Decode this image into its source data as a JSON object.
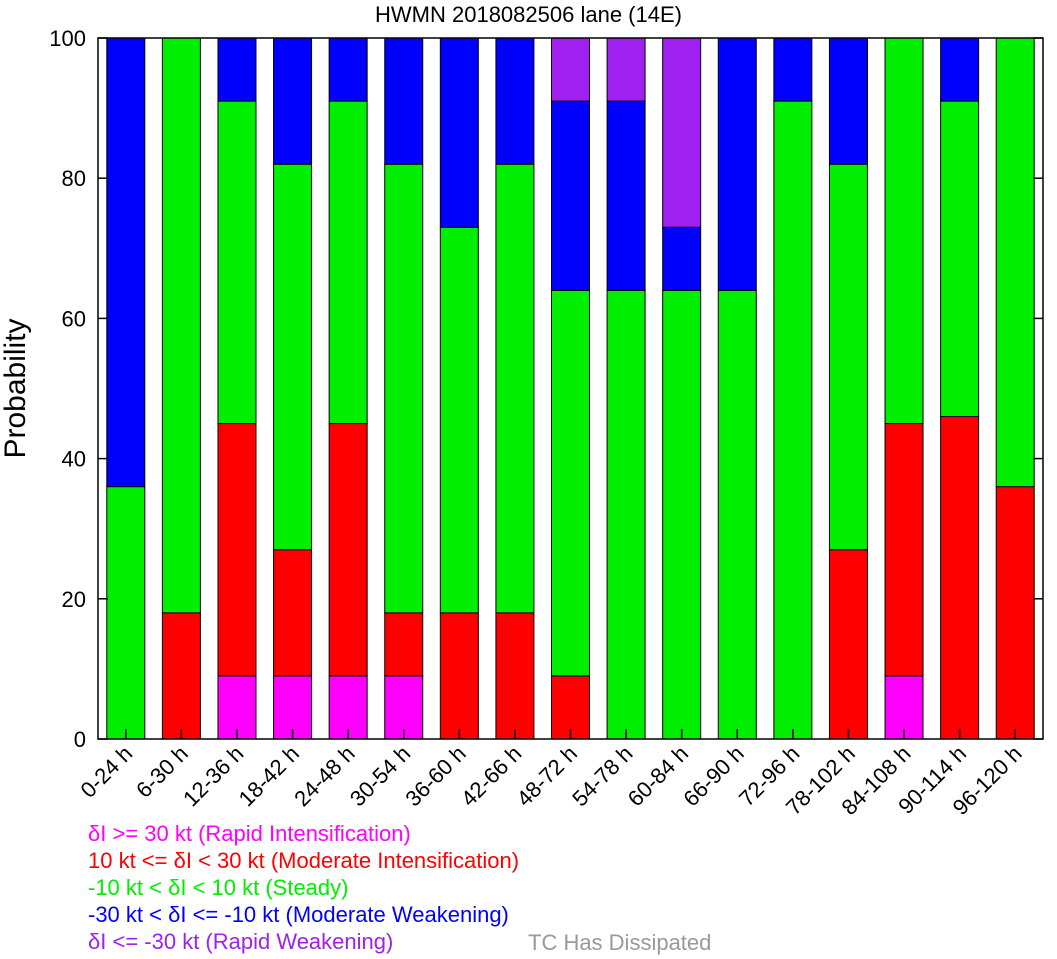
{
  "chart_data": {
    "type": "bar",
    "stacked": true,
    "title": "HWMN 2018082506 lane (14E)",
    "xlabel": "",
    "ylabel": "Probability",
    "ylim": [
      0,
      100
    ],
    "yticks": [
      0,
      20,
      40,
      60,
      80,
      100
    ],
    "grid": false,
    "categories": [
      "0-24 h",
      "6-30 h",
      "12-36 h",
      "18-42 h",
      "24-48 h",
      "30-54 h",
      "36-60 h",
      "42-66 h",
      "48-72 h",
      "54-78 h",
      "60-84 h",
      "66-90 h",
      "72-96 h",
      "78-102 h",
      "84-108 h",
      "90-114 h",
      "96-120 h"
    ],
    "series": [
      {
        "name": "δI >= 30 kt (Rapid Intensification)",
        "color": "#ff00ff",
        "values": [
          0,
          0,
          9,
          9,
          9,
          9,
          0,
          0,
          0,
          0,
          0,
          0,
          0,
          0,
          9,
          0,
          0
        ]
      },
      {
        "name": "10 kt <= δI < 30 kt (Moderate Intensification)",
        "color": "#ff0000",
        "values": [
          0,
          18,
          36,
          18,
          36,
          9,
          18,
          18,
          9,
          0,
          0,
          0,
          0,
          27,
          36,
          46,
          36
        ]
      },
      {
        "name": "-10 kt < δI < 10 kt (Steady)",
        "color": "#00ee00",
        "values": [
          36,
          82,
          46,
          55,
          46,
          64,
          55,
          64,
          55,
          64,
          64,
          64,
          91,
          55,
          55,
          45,
          64
        ]
      },
      {
        "name": "-30 kt < δI <= -10 kt (Moderate Weakening)",
        "color": "#0000ff",
        "values": [
          64,
          0,
          9,
          18,
          9,
          18,
          27,
          18,
          27,
          27,
          9,
          36,
          9,
          18,
          0,
          9,
          0
        ]
      },
      {
        "name": "δI <= -30 kt (Rapid Weakening)",
        "color": "#a020f0",
        "values": [
          0,
          0,
          0,
          0,
          0,
          0,
          0,
          0,
          9,
          9,
          27,
          0,
          0,
          0,
          0,
          0,
          0
        ]
      }
    ],
    "extra_legend": {
      "name": "TC Has Dissipated",
      "color": "#999999"
    }
  }
}
